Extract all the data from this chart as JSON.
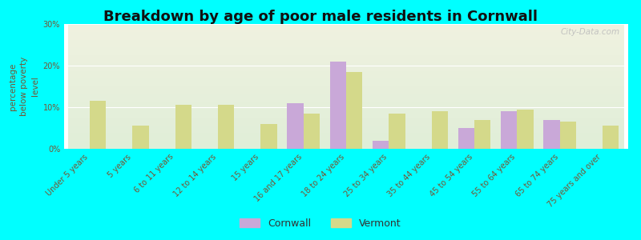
{
  "title": "Breakdown by age of poor male residents in Cornwall",
  "ylabel": "percentage\nbelow poverty\nlevel",
  "categories": [
    "Under 5 years",
    "5 years",
    "6 to 11 years",
    "12 to 14 years",
    "15 years",
    "16 and 17 years",
    "18 to 24 years",
    "25 to 34 years",
    "35 to 44 years",
    "45 to 54 years",
    "55 to 64 years",
    "65 to 74 years",
    "75 years and over"
  ],
  "cornwall": [
    null,
    null,
    null,
    null,
    null,
    11.0,
    21.0,
    2.0,
    null,
    5.0,
    9.0,
    7.0,
    null
  ],
  "vermont": [
    11.5,
    5.5,
    10.5,
    10.5,
    6.0,
    8.5,
    18.5,
    8.5,
    9.0,
    7.0,
    9.5,
    6.5,
    5.5
  ],
  "cornwall_color": "#c9a8d8",
  "vermont_color": "#d4d98a",
  "bg_color": "#00ffff",
  "grad_top": "#f0f2e0",
  "grad_bottom": "#e0eed8",
  "ylim": [
    0,
    30
  ],
  "yticks": [
    0,
    10,
    20,
    30
  ],
  "ytick_labels": [
    "0%",
    "10%",
    "20%",
    "30%"
  ],
  "bar_width": 0.38,
  "title_fontsize": 13,
  "ylabel_fontsize": 7.5,
  "tick_label_fontsize": 7,
  "ylabel_color": "#775533",
  "ytick_color": "#775533",
  "xtick_color": "#775533",
  "watermark": "City-Data.com",
  "watermark_color": "#bbbbbb"
}
